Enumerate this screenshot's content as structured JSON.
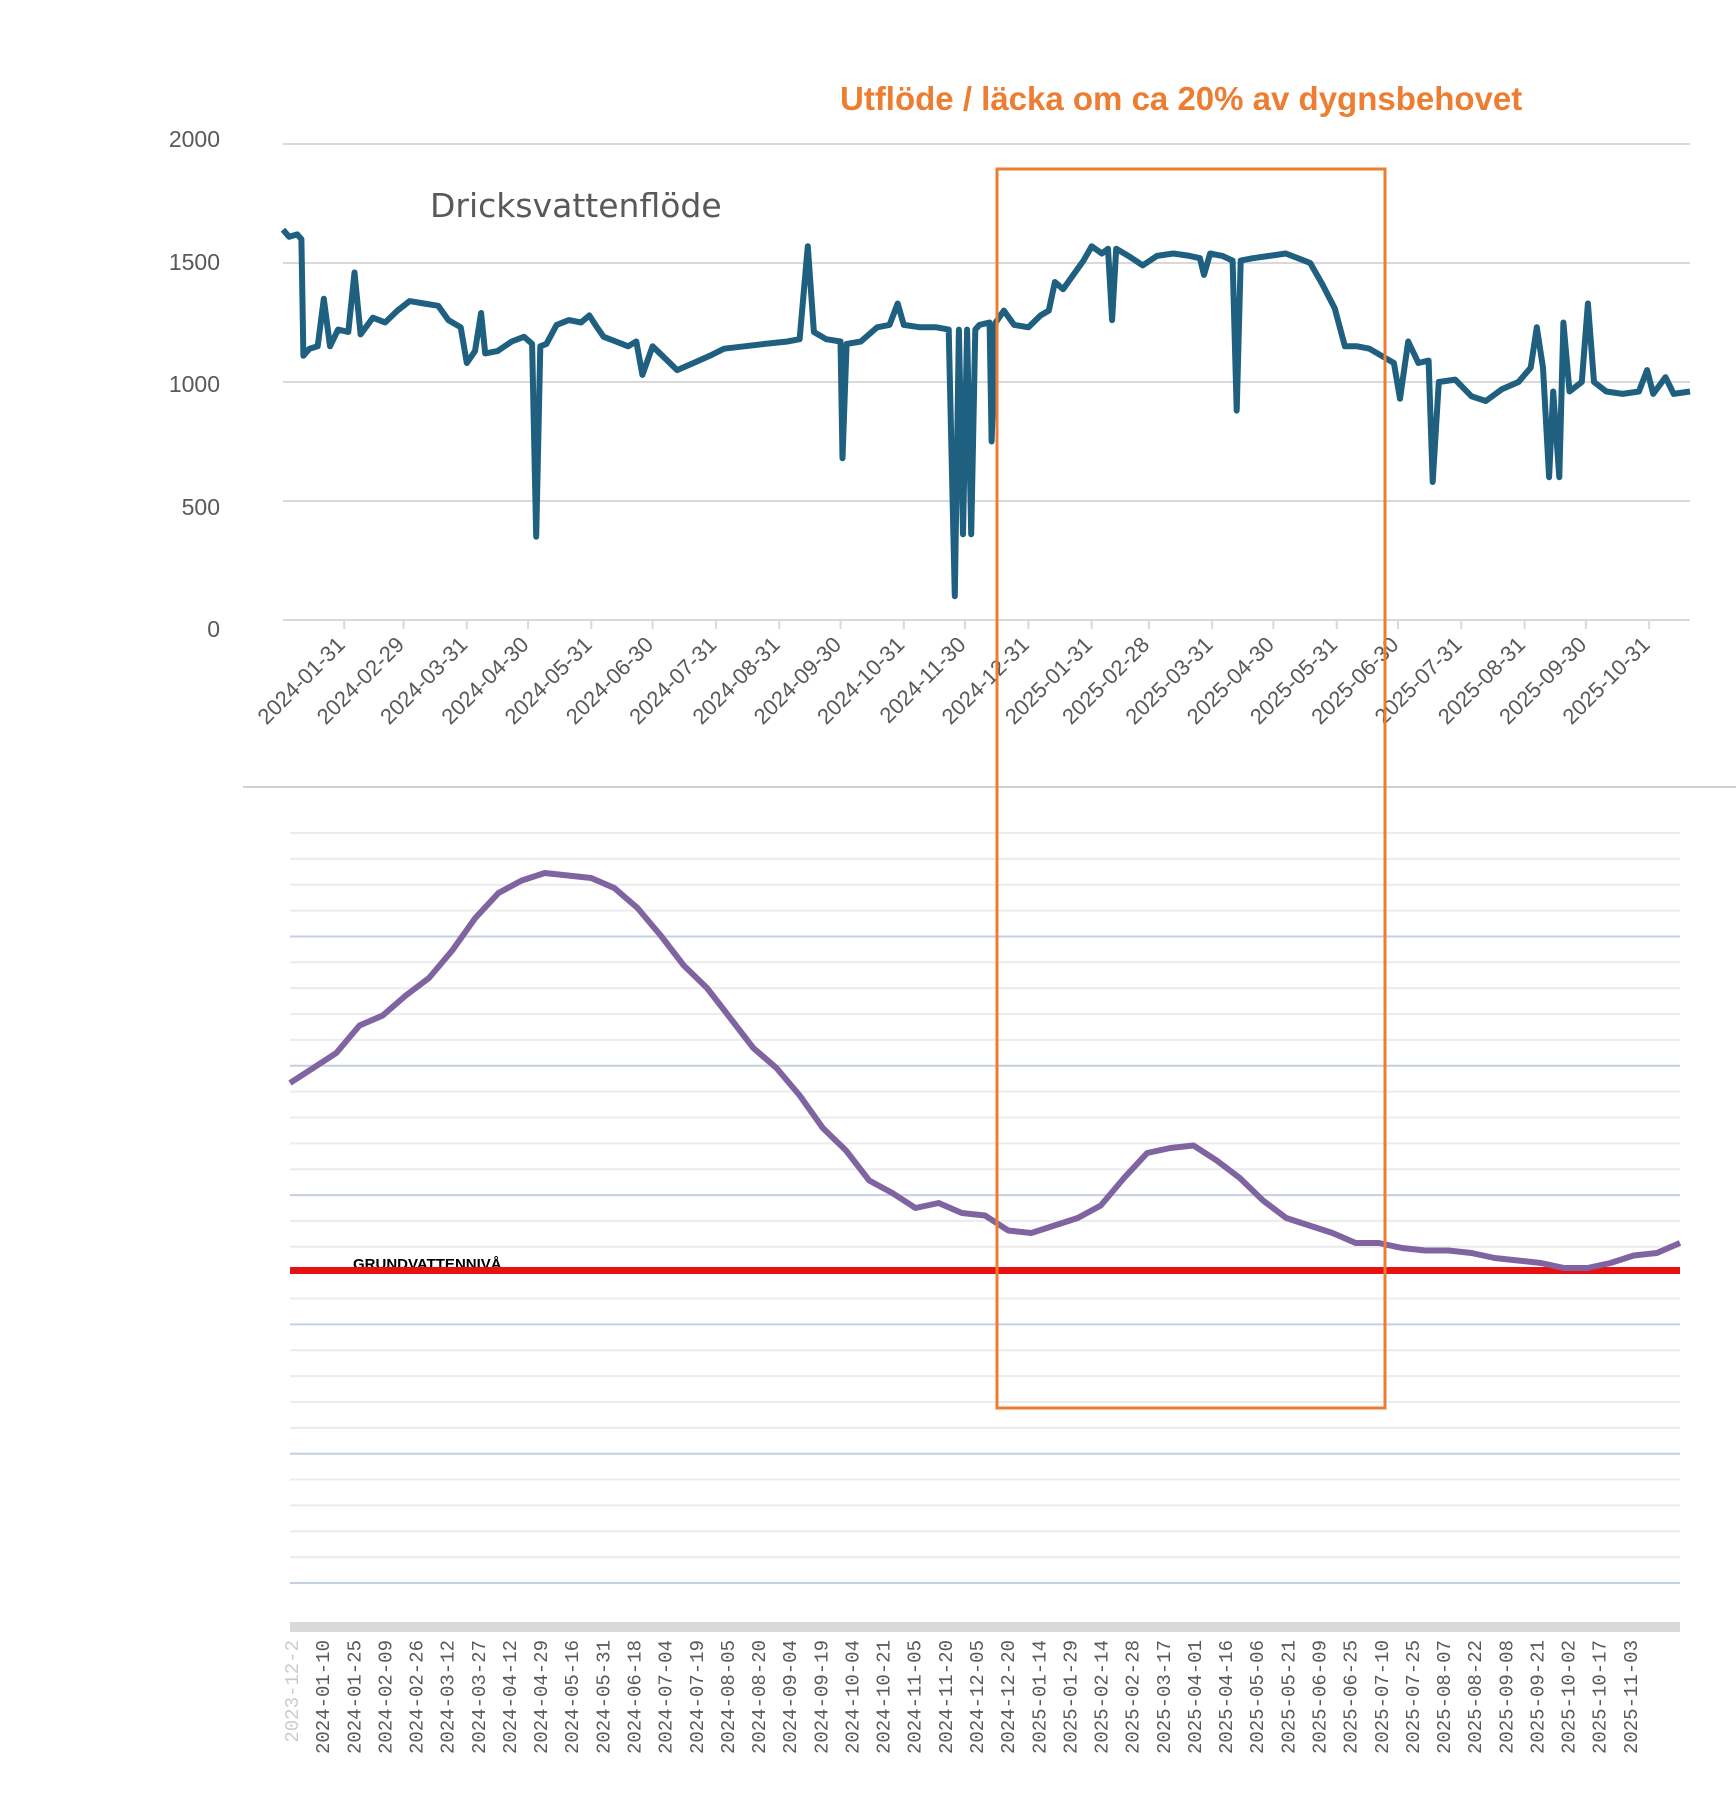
{
  "annotation": {
    "text": "Utflöde / läcka om ca 20% av dygnsbehovet",
    "color": "#ED7D31",
    "highlight_range": [
      "2024-12-10",
      "2025-06-25"
    ]
  },
  "chart_data": [
    {
      "type": "line",
      "title": "Dricksvattenflöde",
      "xlabel": "",
      "ylabel": "",
      "ylim": [
        0,
        2000
      ],
      "grid": true,
      "line_color": "#1F5F7F",
      "y_ticks": [
        "2000",
        "1500",
        "1000",
        "500",
        "0"
      ],
      "x_ticks": [
        "2024-01-31",
        "2024-02-29",
        "2024-03-31",
        "2024-04-30",
        "2024-05-31",
        "2024-06-30",
        "2024-07-31",
        "2024-08-31",
        "2024-09-30",
        "2024-10-31",
        "2024-11-30",
        "2024-12-31",
        "2025-01-31",
        "2025-02-28",
        "2025-03-31",
        "2025-04-30",
        "2025-05-31",
        "2025-06-30",
        "2025-07-31",
        "2025-08-31",
        "2025-09-30",
        "2025-10-31"
      ],
      "series": [
        {
          "name": "Dricksvattenflöde",
          "points": [
            [
              "2024-01-01",
              1640
            ],
            [
              "2024-01-04",
              1610
            ],
            [
              "2024-01-08",
              1620
            ],
            [
              "2024-01-10",
              1600
            ],
            [
              "2024-01-11",
              1110
            ],
            [
              "2024-01-14",
              1140
            ],
            [
              "2024-01-18",
              1150
            ],
            [
              "2024-01-21",
              1350
            ],
            [
              "2024-01-24",
              1150
            ],
            [
              "2024-01-28",
              1220
            ],
            [
              "2024-02-02",
              1210
            ],
            [
              "2024-02-05",
              1460
            ],
            [
              "2024-02-08",
              1200
            ],
            [
              "2024-02-14",
              1270
            ],
            [
              "2024-02-20",
              1250
            ],
            [
              "2024-02-26",
              1300
            ],
            [
              "2024-03-03",
              1340
            ],
            [
              "2024-03-10",
              1330
            ],
            [
              "2024-03-17",
              1320
            ],
            [
              "2024-03-22",
              1260
            ],
            [
              "2024-03-28",
              1230
            ],
            [
              "2024-03-31",
              1080
            ],
            [
              "2024-04-04",
              1130
            ],
            [
              "2024-04-07",
              1290
            ],
            [
              "2024-04-09",
              1120
            ],
            [
              "2024-04-15",
              1130
            ],
            [
              "2024-04-22",
              1170
            ],
            [
              "2024-04-28",
              1190
            ],
            [
              "2024-05-02",
              1160
            ],
            [
              "2024-05-04",
              350
            ],
            [
              "2024-05-06",
              1150
            ],
            [
              "2024-05-09",
              1160
            ],
            [
              "2024-05-14",
              1240
            ],
            [
              "2024-05-20",
              1260
            ],
            [
              "2024-05-26",
              1250
            ],
            [
              "2024-05-30",
              1280
            ],
            [
              "2024-06-02",
              1240
            ],
            [
              "2024-06-06",
              1190
            ],
            [
              "2024-06-12",
              1170
            ],
            [
              "2024-06-18",
              1150
            ],
            [
              "2024-06-22",
              1170
            ],
            [
              "2024-06-25",
              1030
            ],
            [
              "2024-06-30",
              1150
            ],
            [
              "2024-07-06",
              1100
            ],
            [
              "2024-07-12",
              1050
            ],
            [
              "2024-07-20",
              1080
            ],
            [
              "2024-07-28",
              1110
            ],
            [
              "2024-08-04",
              1140
            ],
            [
              "2024-08-14",
              1150
            ],
            [
              "2024-08-24",
              1160
            ],
            [
              "2024-09-04",
              1170
            ],
            [
              "2024-09-10",
              1180
            ],
            [
              "2024-09-14",
              1570
            ],
            [
              "2024-09-17",
              1210
            ],
            [
              "2024-09-23",
              1180
            ],
            [
              "2024-09-30",
              1170
            ],
            [
              "2024-10-01",
              680
            ],
            [
              "2024-10-03",
              1160
            ],
            [
              "2024-10-10",
              1170
            ],
            [
              "2024-10-18",
              1230
            ],
            [
              "2024-10-24",
              1240
            ],
            [
              "2024-10-28",
              1330
            ],
            [
              "2024-10-31",
              1240
            ],
            [
              "2024-11-08",
              1230
            ],
            [
              "2024-11-16",
              1230
            ],
            [
              "2024-11-22",
              1220
            ],
            [
              "2024-11-25",
              100
            ],
            [
              "2024-11-27",
              1220
            ],
            [
              "2024-11-29",
              360
            ],
            [
              "2024-12-01",
              1220
            ],
            [
              "2024-12-03",
              360
            ],
            [
              "2024-12-05",
              1220
            ],
            [
              "2024-12-07",
              1240
            ],
            [
              "2024-12-12",
              1250
            ],
            [
              "2024-12-13",
              750
            ],
            [
              "2024-12-15",
              1250
            ],
            [
              "2024-12-19",
              1300
            ],
            [
              "2024-12-24",
              1240
            ],
            [
              "2024-12-31",
              1230
            ],
            [
              "2025-01-06",
              1280
            ],
            [
              "2025-01-10",
              1300
            ],
            [
              "2025-01-13",
              1420
            ],
            [
              "2025-01-17",
              1390
            ],
            [
              "2025-01-22",
              1450
            ],
            [
              "2025-01-27",
              1510
            ],
            [
              "2025-01-31",
              1570
            ],
            [
              "2025-02-05",
              1540
            ],
            [
              "2025-02-08",
              1560
            ],
            [
              "2025-02-10",
              1260
            ],
            [
              "2025-02-12",
              1560
            ],
            [
              "2025-02-18",
              1530
            ],
            [
              "2025-02-25",
              1490
            ],
            [
              "2025-03-04",
              1530
            ],
            [
              "2025-03-12",
              1540
            ],
            [
              "2025-03-20",
              1530
            ],
            [
              "2025-03-25",
              1520
            ],
            [
              "2025-03-27",
              1450
            ],
            [
              "2025-03-30",
              1540
            ],
            [
              "2025-04-05",
              1530
            ],
            [
              "2025-04-10",
              1510
            ],
            [
              "2025-04-12",
              880
            ],
            [
              "2025-04-14",
              1510
            ],
            [
              "2025-04-20",
              1520
            ],
            [
              "2025-04-28",
              1530
            ],
            [
              "2025-05-06",
              1540
            ],
            [
              "2025-05-12",
              1520
            ],
            [
              "2025-05-18",
              1500
            ],
            [
              "2025-05-24",
              1410
            ],
            [
              "2025-05-30",
              1310
            ],
            [
              "2025-06-04",
              1150
            ],
            [
              "2025-06-10",
              1150
            ],
            [
              "2025-06-16",
              1140
            ],
            [
              "2025-06-22",
              1110
            ],
            [
              "2025-06-28",
              1080
            ],
            [
              "2025-07-01",
              930
            ],
            [
              "2025-07-05",
              1170
            ],
            [
              "2025-07-10",
              1080
            ],
            [
              "2025-07-15",
              1090
            ],
            [
              "2025-07-17",
              580
            ],
            [
              "2025-07-20",
              1000
            ],
            [
              "2025-07-28",
              1010
            ],
            [
              "2025-08-05",
              940
            ],
            [
              "2025-08-12",
              920
            ],
            [
              "2025-08-20",
              970
            ],
            [
              "2025-08-28",
              1000
            ],
            [
              "2025-09-03",
              1060
            ],
            [
              "2025-09-06",
              1230
            ],
            [
              "2025-09-09",
              1060
            ],
            [
              "2025-09-12",
              600
            ],
            [
              "2025-09-14",
              960
            ],
            [
              "2025-09-17",
              600
            ],
            [
              "2025-09-19",
              1250
            ],
            [
              "2025-09-22",
              960
            ],
            [
              "2025-09-28",
              1000
            ],
            [
              "2025-10-01",
              1330
            ],
            [
              "2025-10-04",
              1000
            ],
            [
              "2025-10-10",
              960
            ],
            [
              "2025-10-18",
              950
            ],
            [
              "2025-10-26",
              960
            ],
            [
              "2025-10-30",
              1050
            ],
            [
              "2025-11-02",
              950
            ],
            [
              "2025-11-08",
              1020
            ],
            [
              "2025-11-12",
              950
            ],
            [
              "2025-11-20",
              960
            ]
          ]
        }
      ]
    },
    {
      "type": "line",
      "title": "",
      "series_label": "GRUNDVATTENNIVÅ",
      "xlabel": "",
      "ylabel": "",
      "ylim": [
        0,
        30
      ],
      "grid": true,
      "line_color": "#8064A2",
      "threshold": {
        "value": 12.5,
        "color": "#E81010"
      },
      "x_ticks_visible_partial": "2023-12-2",
      "x_ticks": [
        "2024-01-10",
        "2024-01-25",
        "2024-02-09",
        "2024-02-26",
        "2024-03-12",
        "2024-03-27",
        "2024-04-12",
        "2024-04-29",
        "2024-05-16",
        "2024-05-31",
        "2024-06-18",
        "2024-07-04",
        "2024-07-19",
        "2024-08-05",
        "2024-08-20",
        "2024-09-04",
        "2024-09-19",
        "2024-10-04",
        "2024-10-21",
        "2024-11-05",
        "2024-11-20",
        "2024-12-05",
        "2024-12-20",
        "2025-01-14",
        "2025-01-29",
        "2025-02-14",
        "2025-02-28",
        "2025-03-17",
        "2025-04-01",
        "2025-04-16",
        "2025-05-06",
        "2025-05-21",
        "2025-06-09",
        "2025-06-25",
        "2025-07-10",
        "2025-07-25",
        "2025-08-07",
        "2025-08-22",
        "2025-09-08",
        "2025-09-21",
        "2025-10-02",
        "2025-10-17",
        "2025-11-03"
      ],
      "series": [
        {
          "name": "GRUNDVATTENNIVÅ",
          "values": [
            20.0,
            20.6,
            21.2,
            22.3,
            22.7,
            23.5,
            24.2,
            25.3,
            26.6,
            27.6,
            28.1,
            28.4,
            28.3,
            28.2,
            27.8,
            27.0,
            25.9,
            24.7,
            23.8,
            22.6,
            21.4,
            20.6,
            19.5,
            18.2,
            17.3,
            16.1,
            15.6,
            15.0,
            15.2,
            14.8,
            14.7,
            14.1,
            14.0,
            14.3,
            14.6,
            15.1,
            16.2,
            17.2,
            17.4,
            17.5,
            16.9,
            16.2,
            15.3,
            14.6,
            14.3,
            14.0,
            13.6,
            13.6,
            13.4,
            13.3,
            13.3,
            13.2,
            13.0,
            12.9,
            12.8,
            12.6,
            12.6,
            12.8,
            13.1,
            13.2,
            13.6
          ]
        }
      ]
    }
  ]
}
